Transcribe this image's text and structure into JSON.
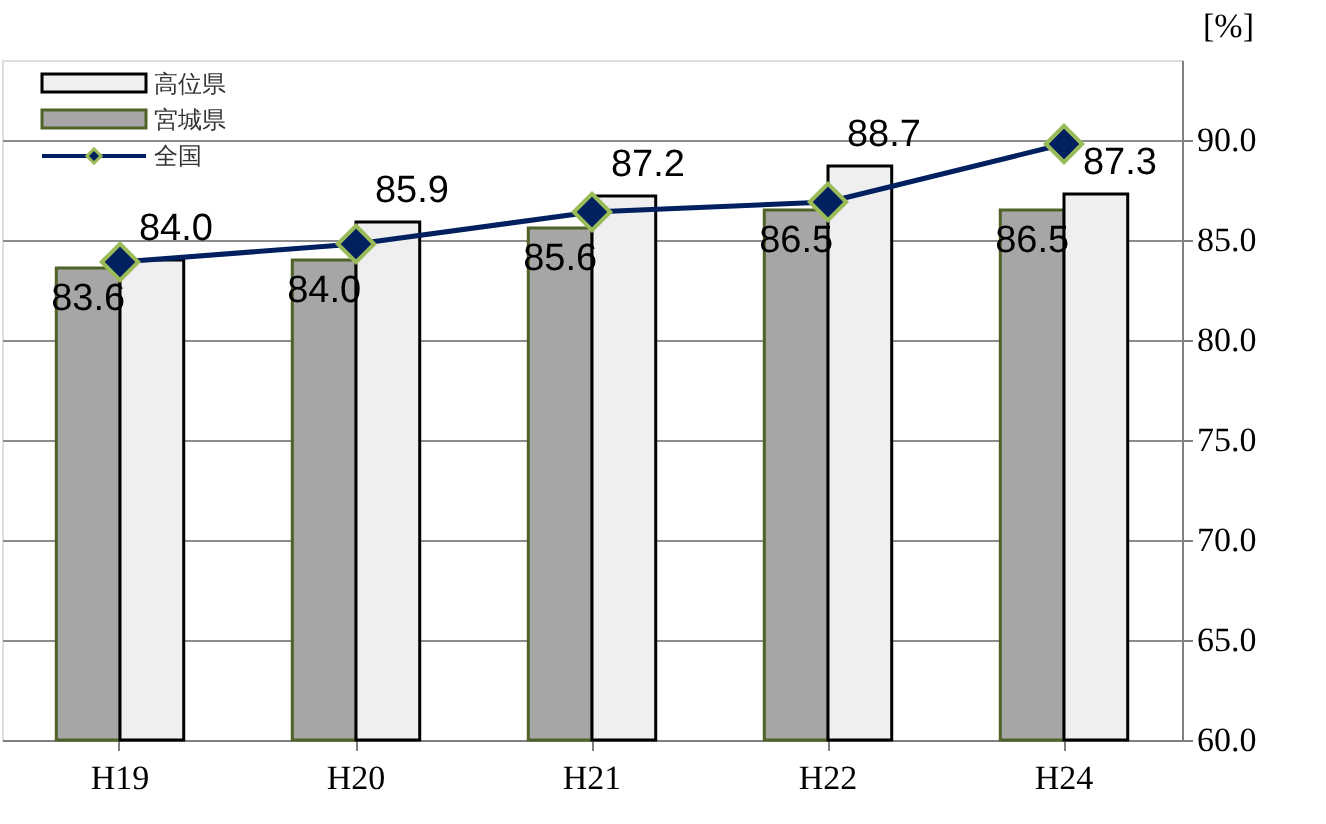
{
  "chart_data": {
    "type": "bar",
    "ylabel": "[%]",
    "categories": [
      "H19",
      "H20",
      "H21",
      "H22",
      "H24"
    ],
    "series": [
      {
        "name": "宮城県",
        "color": "#a6a6a6",
        "values": [
          83.6,
          84.0,
          85.6,
          86.5,
          86.5
        ],
        "value_labels": [
          "83.6",
          "84.0",
          "85.6",
          "86.5",
          "86.5"
        ]
      },
      {
        "name": "高位県",
        "color": "#efefef",
        "values": [
          84.0,
          85.9,
          87.2,
          88.7,
          87.3
        ],
        "value_labels": [
          "84.0",
          "85.9",
          "87.2",
          "88.7",
          "87.3"
        ]
      },
      {
        "name": "全国",
        "type": "line",
        "line_style": "solid",
        "color": "#002060",
        "marker": "diamond",
        "values": [
          83.9,
          84.8,
          86.4,
          86.9,
          89.8
        ]
      }
    ],
    "ylim": [
      60,
      94
    ],
    "yticks": [
      {
        "value": 60,
        "label": "60.0"
      },
      {
        "value": 65,
        "label": "65.0"
      },
      {
        "value": 70,
        "label": "70.0"
      },
      {
        "value": 75,
        "label": "75.0"
      },
      {
        "value": 80,
        "label": "80.0"
      },
      {
        "value": 85,
        "label": "85.0"
      },
      {
        "value": 90,
        "label": "90.0"
      }
    ],
    "grid": "y",
    "legend": "top left"
  }
}
